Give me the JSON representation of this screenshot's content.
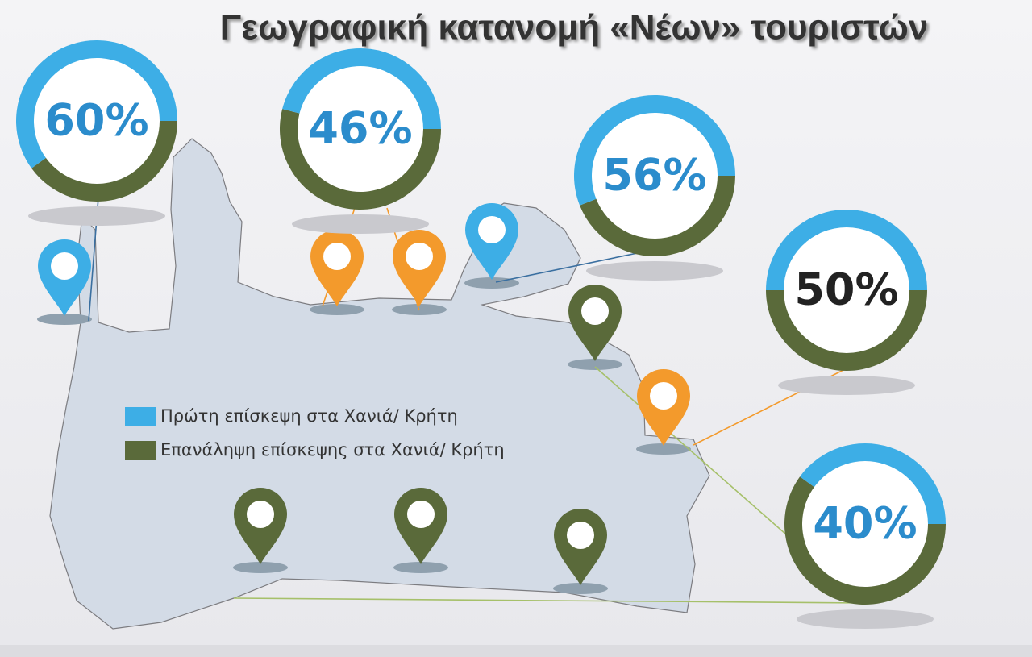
{
  "chart_data": {
    "type": "donut",
    "title": "Γεωγραφική κατανομή «Νέων» τουριστών",
    "series": [
      {
        "name": "Πρώτη επίσκεψη στα Χανιά/ Κρήτη",
        "color": "#3daee6",
        "values": [
          60,
          46,
          56,
          50,
          40
        ],
        "value_labels": [
          "60%",
          "46%",
          "56%",
          "50%",
          "40%"
        ],
        "value_label_colors": [
          "#2b8ccc",
          "#2b8ccc",
          "#2b8ccc",
          "#222222",
          "#2b8ccc"
        ]
      },
      {
        "name": "Επανάληψη επίσκεψης στα Χανιά/ Κρήτη",
        "color": "#5a6a3a",
        "values": [
          40,
          54,
          44,
          50,
          60
        ]
      }
    ]
  }
}
